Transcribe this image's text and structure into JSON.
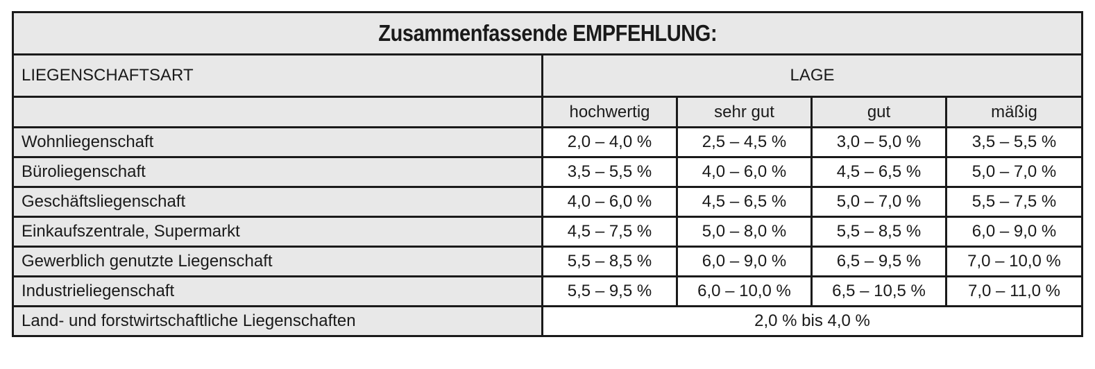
{
  "title": "Zusammenfassende EMPFEHLUNG:",
  "header": {
    "property_type_label": "LIEGENSCHAFTSART",
    "location_label": "LAGE",
    "columns": [
      "hochwertig",
      "sehr gut",
      "gut",
      "mäßig"
    ]
  },
  "rows": [
    {
      "label": "Wohnliegenschaft",
      "values": [
        "2,0 – 4,0 %",
        "2,5 – 4,5 %",
        "3,0 – 5,0 %",
        "3,5 – 5,5 %"
      ]
    },
    {
      "label": "Büroliegenschaft",
      "values": [
        "3,5 – 5,5 %",
        "4,0 – 6,0 %",
        "4,5 – 6,5 %",
        "5,0 – 7,0 %"
      ]
    },
    {
      "label": "Geschäftsliegenschaft",
      "values": [
        "4,0 – 6,0 %",
        "4,5 – 6,5 %",
        "5,0 – 7,0 %",
        "5,5 – 7,5 %"
      ]
    },
    {
      "label": "Einkaufszentrale, Supermarkt",
      "values": [
        "4,5 – 7,5 %",
        "5,0 – 8,0 %",
        "5,5 – 8,5 %",
        "6,0 – 9,0 %"
      ]
    },
    {
      "label": "Gewerblich genutzte Liegenschaft",
      "values": [
        "5,5 – 8,5 %",
        "6,0 – 9,0 %",
        "6,5 – 9,5 %",
        "7,0 – 10,0 %"
      ]
    },
    {
      "label": "Industrieliegenschaft",
      "values": [
        "5,5 – 9,5 %",
        "6,0 – 10,0 %",
        "6,5 – 10,5 %",
        "7,0 – 11,0 %"
      ]
    }
  ],
  "last_row": {
    "label": "Land- und forstwirtschaftliche Liegenschaften",
    "value": "2,0 % bis 4,0 %"
  }
}
